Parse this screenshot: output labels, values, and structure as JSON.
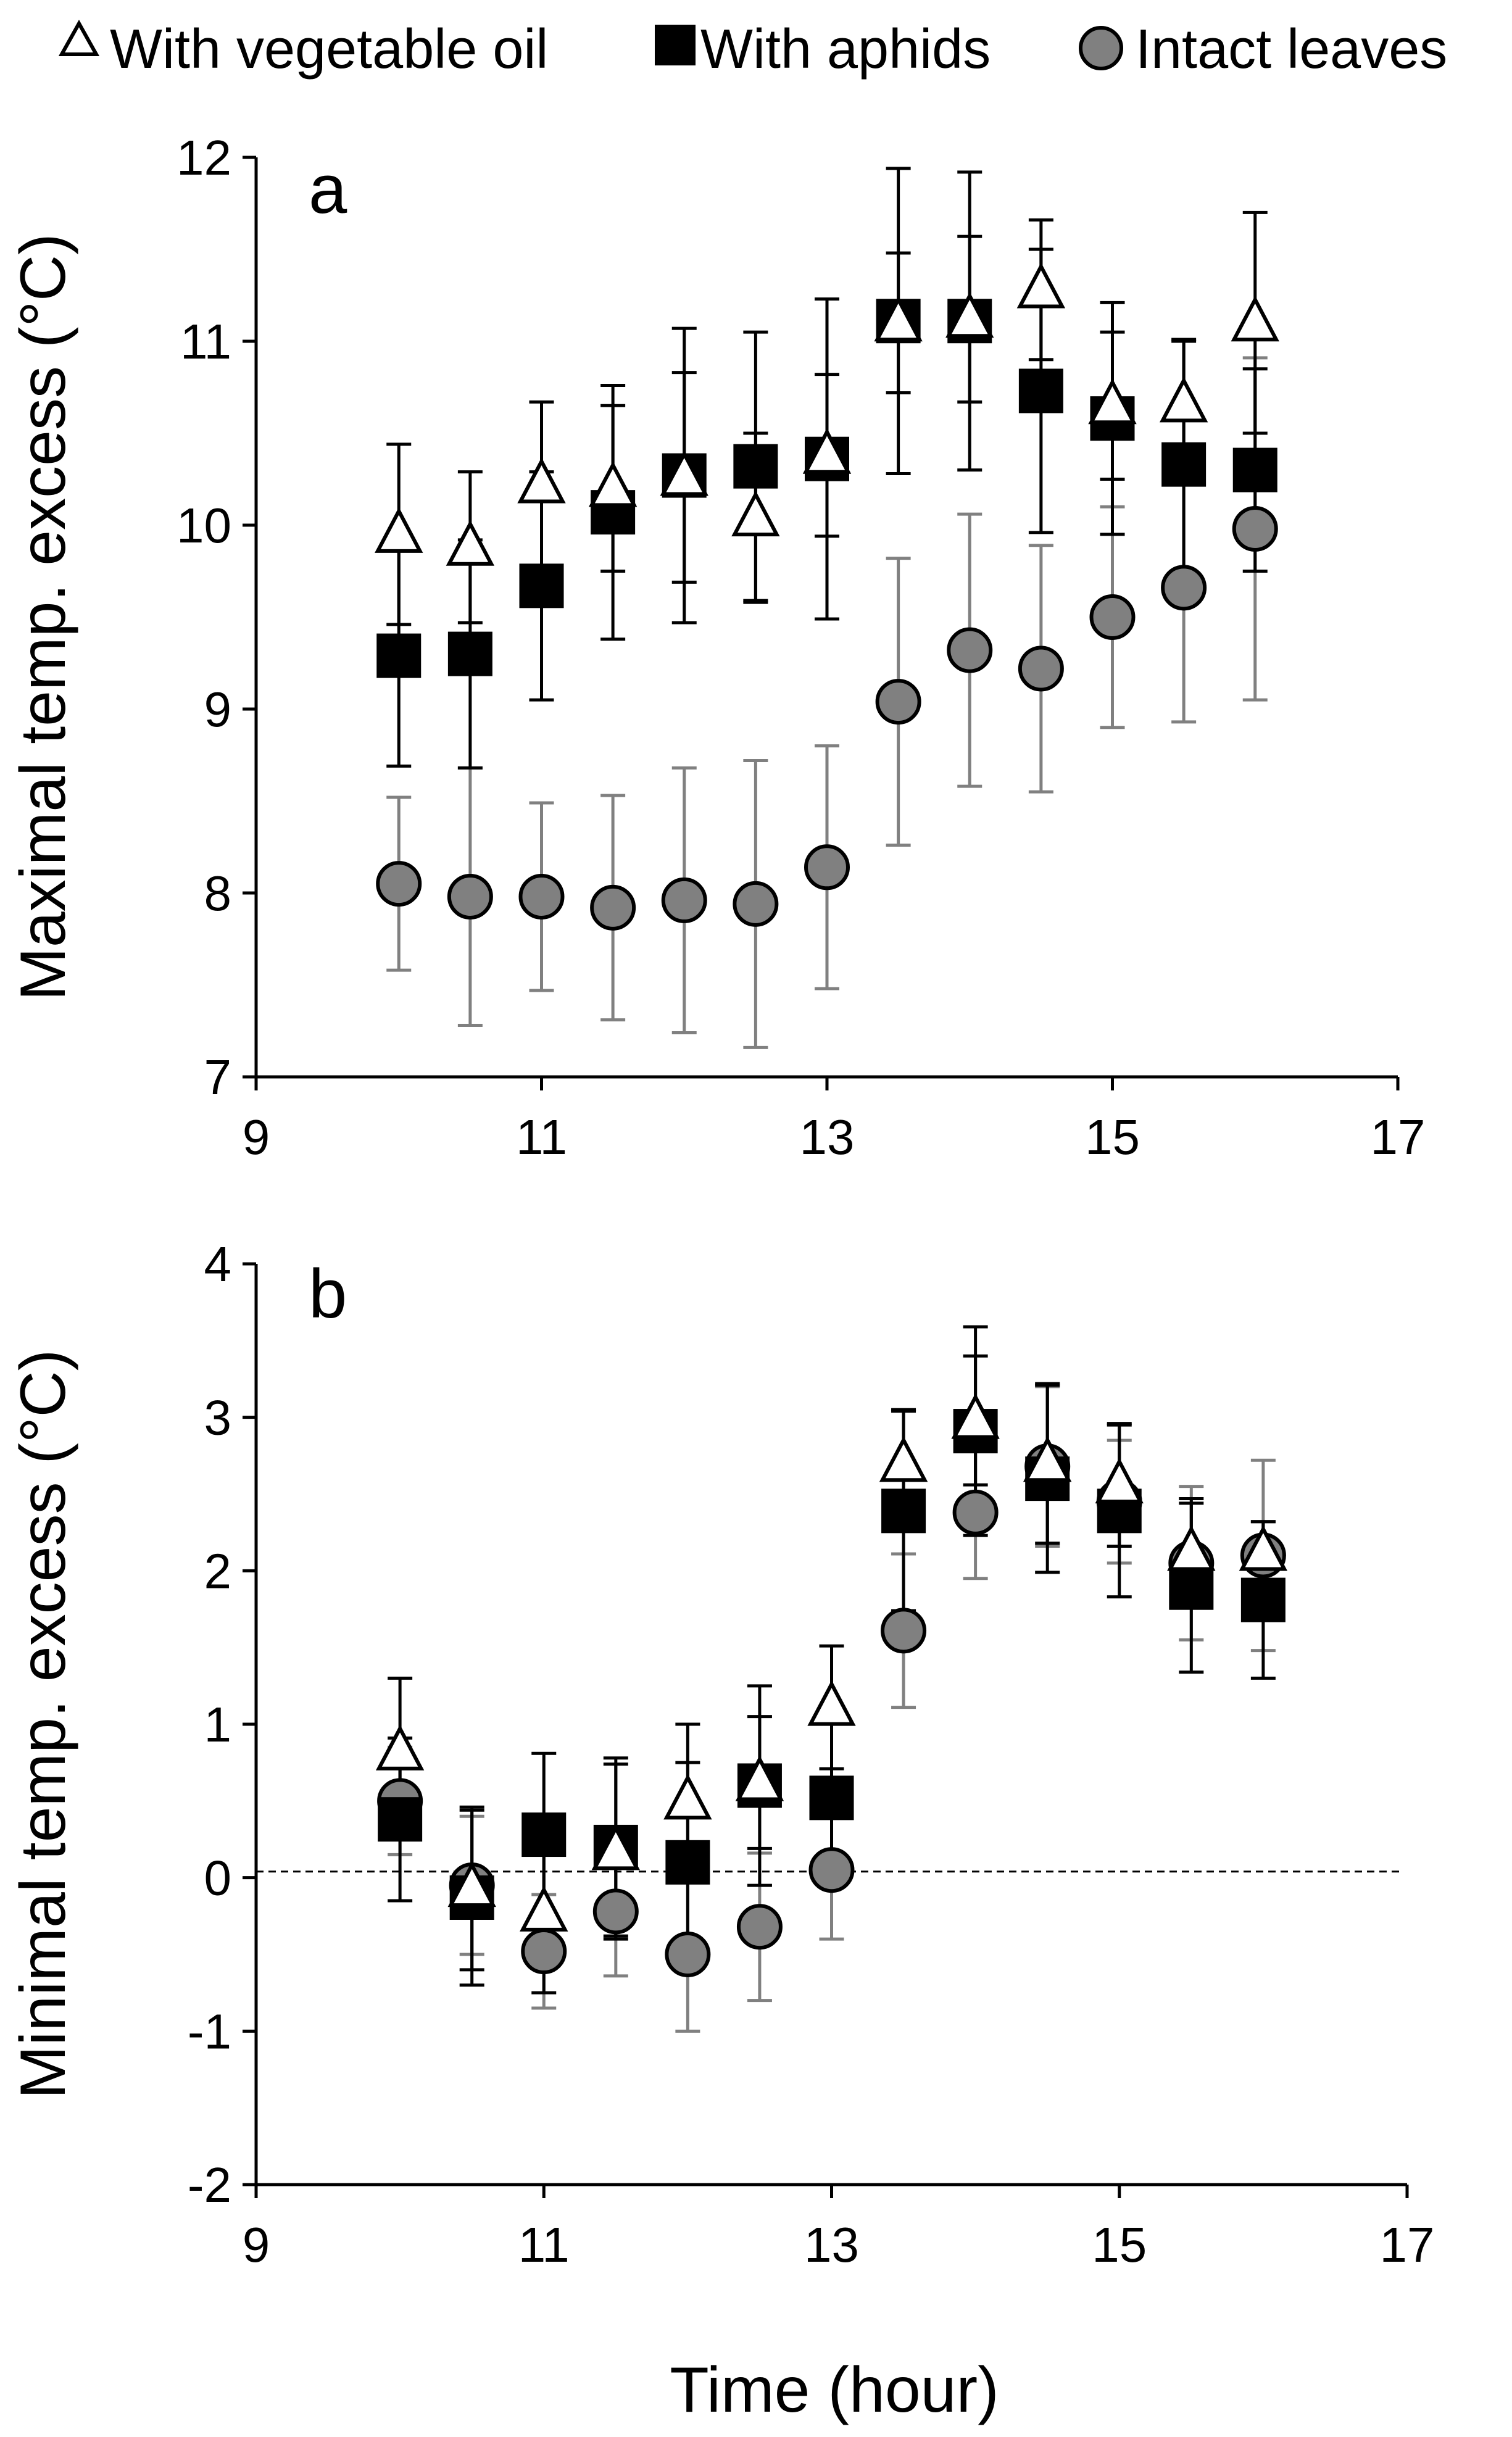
{
  "legend": [
    {
      "label": "With vegetable oil",
      "marker": "triangle-open",
      "color": "#ffffff"
    },
    {
      "label": "With aphids",
      "marker": "square",
      "color": "#000000"
    },
    {
      "label": "Intact leaves",
      "marker": "circle",
      "color": "#808080"
    }
  ],
  "xlabel": "Time (hour)",
  "chart_data": [
    {
      "type": "scatter",
      "panel": "a",
      "ylabel": "Maximal temp. excess (°C)",
      "xlim": [
        9,
        17
      ],
      "ylim": [
        7,
        12
      ],
      "xticks": [
        "9",
        "11",
        "13",
        "15",
        "17"
      ],
      "yticks": [
        "7",
        "8",
        "9",
        "10",
        "11",
        "12"
      ],
      "x": [
        10,
        10.5,
        11,
        11.5,
        12,
        12.5,
        13,
        13.5,
        14,
        14.5,
        15,
        15.5,
        16
      ],
      "series": [
        {
          "name": "Intact leaves",
          "marker": "circle",
          "values": [
            8.05,
            7.98,
            7.98,
            7.92,
            7.96,
            7.94,
            8.14,
            9.04,
            9.32,
            9.22,
            9.5,
            9.66,
            9.98
          ],
          "errors": [
            0.47,
            0.7,
            0.51,
            0.61,
            0.72,
            0.78,
            0.66,
            0.78,
            0.74,
            0.67,
            0.6,
            0.73,
            0.93
          ]
        },
        {
          "name": "With aphids",
          "marker": "square",
          "values": [
            9.29,
            9.3,
            9.67,
            10.07,
            10.27,
            10.32,
            10.36,
            11.11,
            11.11,
            10.73,
            10.58,
            10.33,
            10.3
          ],
          "errors": [
            0.6,
            0.62,
            0.62,
            0.69,
            0.8,
            0.73,
            0.87,
            0.83,
            0.81,
            0.77,
            0.63,
            0.67,
            0.55
          ]
        },
        {
          "name": "With vegetable oil",
          "marker": "triangle-open",
          "values": [
            9.95,
            9.88,
            10.22,
            10.2,
            10.26,
            10.04,
            10.38,
            11.1,
            11.12,
            11.28,
            10.65,
            10.66,
            11.1
          ],
          "errors": [
            0.49,
            0.41,
            0.45,
            0.45,
            0.57,
            0.46,
            0.44,
            0.38,
            0.45,
            0.38,
            0.4,
            0.35,
            0.6
          ]
        }
      ]
    },
    {
      "type": "scatter",
      "panel": "b",
      "ylabel": "Minimal temp. excess (°C)",
      "xlim": [
        9,
        17
      ],
      "ylim": [
        -2,
        4
      ],
      "xticks": [
        "9",
        "11",
        "13",
        "15",
        "17"
      ],
      "yticks": [
        "-2",
        "-1",
        "0",
        "1",
        "2",
        "3",
        "4"
      ],
      "reference_line": 0.04,
      "x": [
        10,
        10.5,
        11,
        11.5,
        12,
        12.5,
        13,
        13.5,
        14,
        14.5,
        15,
        15.5,
        16
      ],
      "series": [
        {
          "name": "Intact leaves",
          "marker": "circle",
          "values": [
            0.5,
            -0.05,
            -0.48,
            -0.22,
            -0.5,
            -0.32,
            0.05,
            1.61,
            2.38,
            2.68,
            2.45,
            2.05,
            2.1
          ],
          "errors": [
            0.35,
            0.45,
            0.37,
            0.42,
            0.5,
            0.48,
            0.45,
            0.5,
            0.43,
            0.52,
            0.4,
            0.5,
            0.62
          ]
        },
        {
          "name": "With aphids",
          "marker": "square",
          "values": [
            0.38,
            -0.13,
            0.28,
            0.2,
            0.1,
            0.6,
            0.52,
            2.39,
            2.91,
            2.6,
            2.39,
            1.89,
            1.81
          ],
          "errors": [
            0.53,
            0.57,
            0.53,
            0.58,
            0.65,
            0.65,
            0.57,
            0.65,
            0.68,
            0.61,
            0.56,
            0.55,
            0.51
          ]
        },
        {
          "name": "With vegetable oil",
          "marker": "triangle-open",
          "values": [
            0.82,
            -0.07,
            -0.23,
            0.17,
            0.5,
            0.62,
            1.11,
            2.7,
            2.98,
            2.7,
            2.56,
            2.12,
            2.12
          ],
          "errors": [
            0.48,
            0.53,
            0.52,
            0.57,
            0.5,
            0.43,
            0.4,
            0.35,
            0.42,
            0.52,
            0.4,
            0.35,
            0.2
          ]
        }
      ]
    }
  ]
}
